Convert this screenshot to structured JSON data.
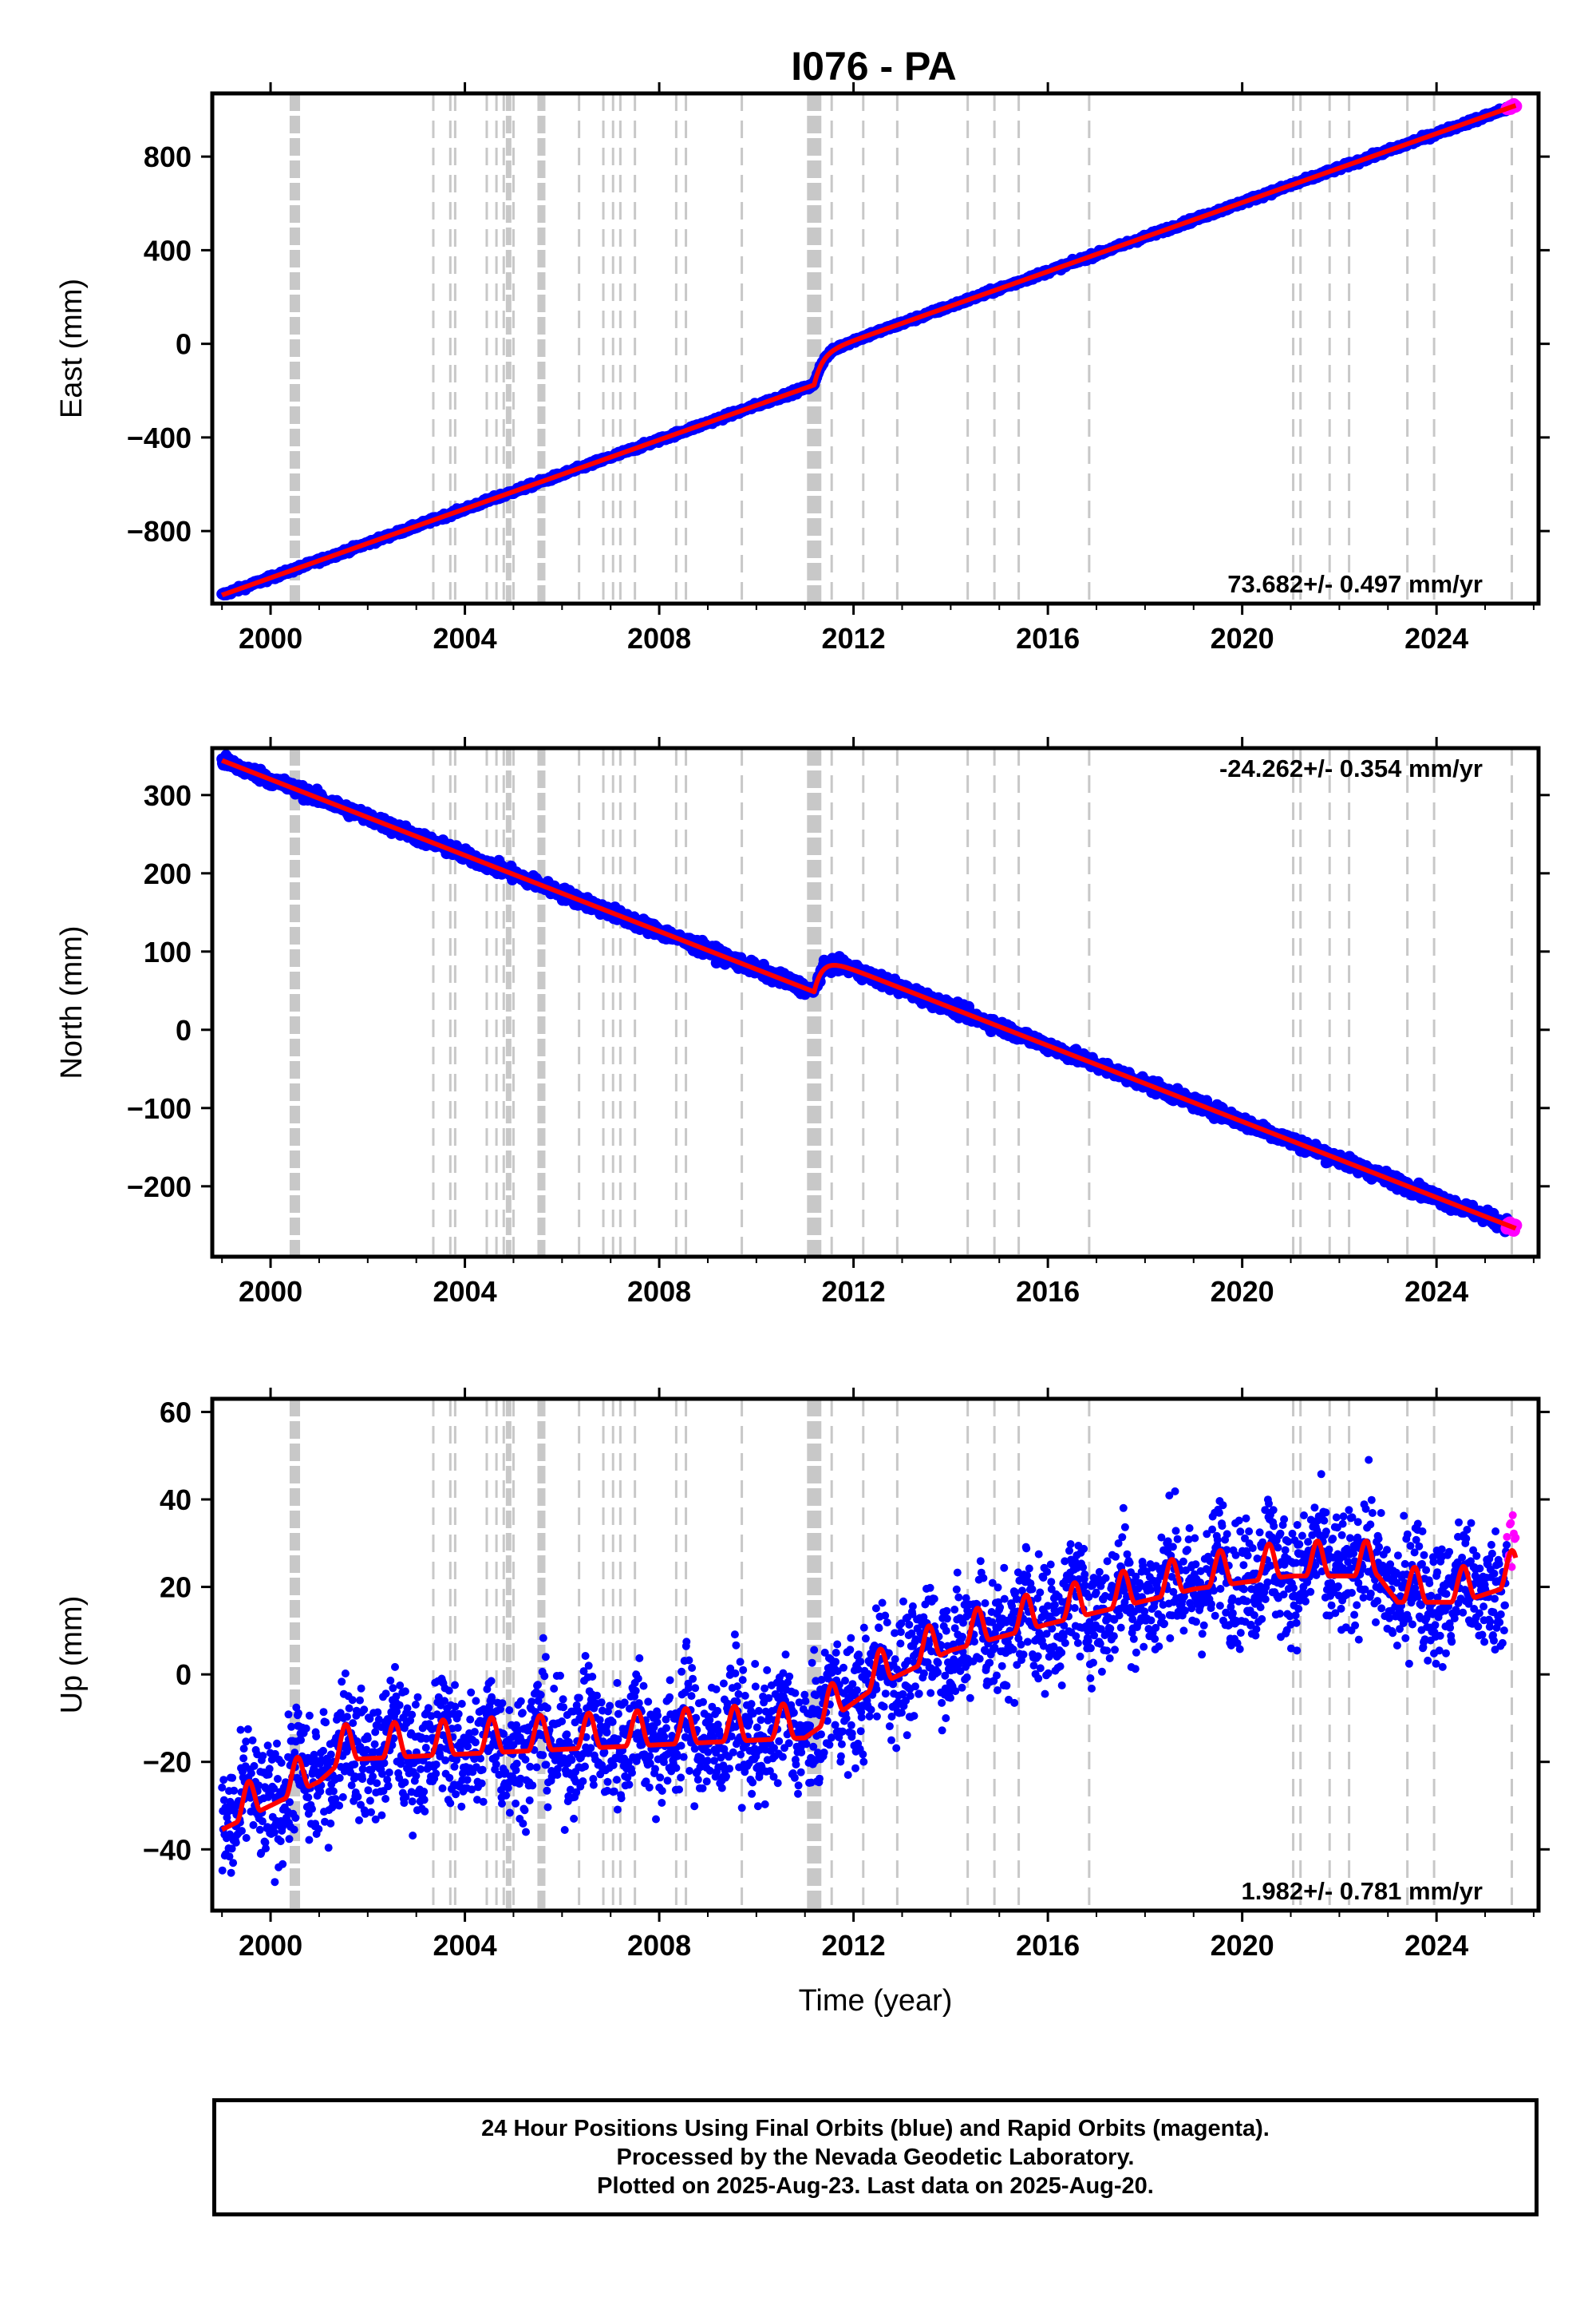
{
  "figure": {
    "title": "I076 - PA"
  },
  "chart_data": [
    {
      "type": "scatter",
      "panel": "east",
      "title": "I076 - PA",
      "ylabel": "East (mm)",
      "xlabel": "",
      "xlim": [
        1998.8,
        2026.1
      ],
      "ylim": [
        -1110,
        1070
      ],
      "x_ticks": [
        2000,
        2004,
        2008,
        2012,
        2016,
        2020,
        2024
      ],
      "x_tick_labels": [
        "2000",
        "2004",
        "2008",
        "2012",
        "2016",
        "2020",
        "2024"
      ],
      "y_ticks": [
        -800,
        -400,
        0,
        400,
        800
      ],
      "y_tick_labels": [
        "−800",
        "−400",
        "0",
        "400",
        "800"
      ],
      "rate_label": "73.682+/- 0.497 mm/yr",
      "rate_label_position": "bottom-right",
      "trend": {
        "rate_mm_per_yr": 73.682,
        "value_at_2000": -1000,
        "offsets": [
          {
            "time": 2011.19,
            "step": 130
          }
        ]
      },
      "series": [
        {
          "name": "Final Orbits",
          "color": "#0000ff",
          "time_range": [
            1999.0,
            2025.45
          ]
        },
        {
          "name": "Rapid Orbits",
          "color": "#ff00ff",
          "time_range": [
            2025.45,
            2025.63
          ]
        },
        {
          "name": "Model",
          "color": "#ff0000",
          "time_range": [
            1999.0,
            2025.63
          ]
        }
      ],
      "grid": false
    },
    {
      "type": "scatter",
      "panel": "north",
      "ylabel": "North (mm)",
      "xlabel": "",
      "xlim": [
        1998.8,
        2026.1
      ],
      "ylim": [
        -290,
        360
      ],
      "x_ticks": [
        2000,
        2004,
        2008,
        2012,
        2016,
        2020,
        2024
      ],
      "x_tick_labels": [
        "2000",
        "2004",
        "2008",
        "2012",
        "2016",
        "2020",
        "2024"
      ],
      "y_ticks": [
        -200,
        -100,
        0,
        100,
        200,
        300
      ],
      "y_tick_labels": [
        "−200",
        "−100",
        "0",
        "100",
        "200",
        "300"
      ],
      "rate_label": "-24.262+/- 0.354 mm/yr",
      "rate_label_position": "top-right",
      "trend": {
        "rate_mm_per_yr": -24.262,
        "value_at_2000": 320,
        "offsets": [
          {
            "time": 2011.19,
            "step": 48
          }
        ]
      },
      "series": [
        {
          "name": "Final Orbits",
          "color": "#0000ff",
          "time_range": [
            1999.0,
            2025.45
          ]
        },
        {
          "name": "Rapid Orbits",
          "color": "#ff00ff",
          "time_range": [
            2025.45,
            2025.63
          ]
        },
        {
          "name": "Model",
          "color": "#ff0000",
          "time_range": [
            1999.0,
            2025.63
          ]
        }
      ],
      "grid": false
    },
    {
      "type": "scatter",
      "panel": "up",
      "ylabel": "Up (mm)",
      "xlabel": "Time (year)",
      "xlim": [
        1998.8,
        2026.1
      ],
      "ylim": [
        -54,
        63
      ],
      "x_ticks": [
        2000,
        2004,
        2008,
        2012,
        2016,
        2020,
        2024
      ],
      "x_tick_labels": [
        "2000",
        "2004",
        "2008",
        "2012",
        "2016",
        "2020",
        "2024"
      ],
      "y_ticks": [
        -40,
        -20,
        0,
        20,
        40,
        60
      ],
      "y_tick_labels": [
        "−40",
        "−20",
        "0",
        "20",
        "40",
        "60"
      ],
      "rate_label": "1.982+/- 0.781 mm/yr",
      "rate_label_position": "bottom-right",
      "model_trend_points": [
        [
          1999.0,
          -34
        ],
        [
          2001.0,
          -23
        ],
        [
          2001.5,
          -18
        ],
        [
          2011.0,
          -13
        ],
        [
          2012.5,
          -1
        ],
        [
          2014.0,
          7
        ],
        [
          2016.0,
          13
        ],
        [
          2019.0,
          21
        ],
        [
          2021.0,
          24
        ],
        [
          2022.8,
          24
        ],
        [
          2023.2,
          18
        ],
        [
          2024.5,
          18
        ],
        [
          2025.6,
          22
        ]
      ],
      "seasonal_amplitude_mm": 5,
      "scatter_spread_mm": 7,
      "series": [
        {
          "name": "Final Orbits",
          "color": "#0000ff",
          "time_range": [
            1999.0,
            2025.45
          ]
        },
        {
          "name": "Rapid Orbits",
          "color": "#ff00ff",
          "time_range": [
            2025.45,
            2025.63
          ]
        },
        {
          "name": "Model",
          "color": "#ff0000",
          "time_range": [
            1999.0,
            2025.63
          ]
        }
      ],
      "grid": false
    }
  ],
  "vertical_markers": {
    "color": "#c8c8c8",
    "dashed": [
      2003.35,
      2003.7,
      2003.8,
      2004.45,
      2004.65,
      2004.8,
      2005.0,
      2006.35,
      2006.85,
      2007.05,
      2007.2,
      2007.5,
      2008.35,
      2008.55,
      2009.7,
      2011.55,
      2012.2,
      2012.9,
      2014.35,
      2014.9,
      2015.4,
      2016.85,
      2021.05,
      2021.2,
      2021.8,
      2022.2,
      2023.4,
      2023.95,
      2025.55
    ],
    "thick": [
      2000.45,
      2000.55,
      2004.9,
      2005.55,
      2005.6,
      2011.1,
      2011.2,
      2011.28
    ]
  },
  "footer": {
    "line1": "24 Hour Positions Using Final Orbits (blue) and Rapid Orbits (magenta).",
    "line2": "Processed by the Nevada Geodetic Laboratory.",
    "line3": "Plotted on 2025-Aug-23. Last data on 2025-Aug-20."
  }
}
